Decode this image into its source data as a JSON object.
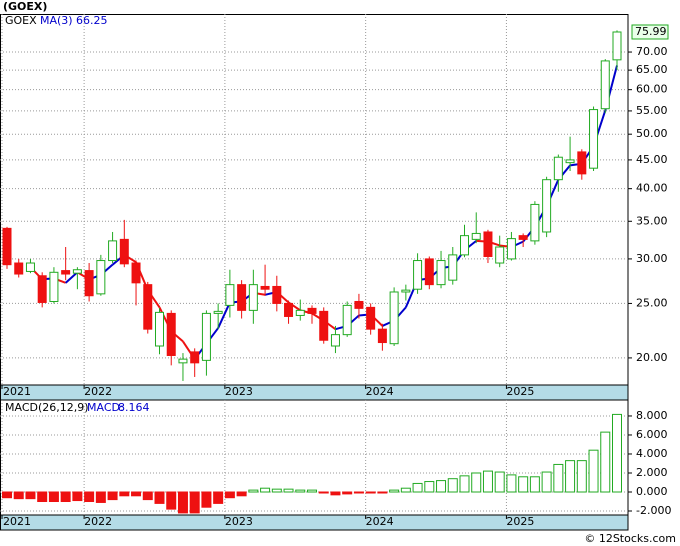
{
  "chart_data": [
    {
      "type": "candlestick",
      "title": "(GOEX)",
      "ticker_label": "GOEX",
      "categories": [
        "2021",
        null,
        null,
        null,
        null,
        null,
        null,
        "2022",
        null,
        null,
        null,
        null,
        null,
        null,
        null,
        null,
        null,
        null,
        null,
        "2023",
        null,
        null,
        null,
        null,
        null,
        null,
        null,
        null,
        null,
        null,
        null,
        "2024",
        null,
        null,
        null,
        null,
        null,
        null,
        null,
        null,
        null,
        null,
        null,
        "2025",
        null,
        null,
        null,
        null,
        null,
        null,
        null,
        null,
        null
      ],
      "open": [
        34,
        29.5,
        28.5,
        28,
        25.2,
        28.6,
        28.3,
        28.6,
        26,
        29.8,
        32.5,
        29.5,
        27,
        21,
        24,
        19.6,
        20.5,
        19.8,
        24,
        24.8,
        27,
        24.3,
        26.8,
        26.8,
        25,
        23.8,
        24.5,
        24.2,
        21,
        22,
        25.2,
        24.6,
        22.5,
        21.2,
        26.2,
        26.5,
        30,
        27,
        27.5,
        30.5,
        32.5,
        33.5,
        29.5,
        30,
        33,
        32.3,
        33.5,
        41.5,
        44.5,
        46.5,
        43.5,
        55.5,
        67.8
      ],
      "high": [
        34.2,
        30,
        30,
        28.4,
        29,
        31.5,
        29,
        29.5,
        30.5,
        33.5,
        35.2,
        29.8,
        27.3,
        24.5,
        24.3,
        20.4,
        20.8,
        24.3,
        25,
        28.7,
        27.5,
        28.7,
        29.3,
        28,
        25.3,
        25.4,
        24.8,
        24.6,
        22.8,
        25.2,
        26,
        25,
        23,
        26.7,
        27,
        30.7,
        30.3,
        31,
        31.5,
        34.5,
        36.3,
        33.8,
        33,
        33.5,
        33.3,
        38,
        42,
        46,
        49.5,
        47,
        56,
        68,
        76.5
      ],
      "low": [
        28.8,
        27.8,
        28.3,
        24.6,
        25,
        27.5,
        26.5,
        25.2,
        25.8,
        29.5,
        29,
        24.8,
        22.1,
        20.3,
        19.4,
        18.2,
        18.5,
        18.6,
        22.5,
        23.6,
        23.5,
        23,
        25.8,
        24.2,
        23,
        23.3,
        23,
        21.2,
        20.4,
        21.8,
        23.5,
        22,
        20.6,
        21,
        25.3,
        26,
        26.5,
        26.6,
        27,
        30.2,
        32,
        29.5,
        29,
        29.8,
        31.5,
        31.8,
        32.8,
        39.5,
        43,
        41.5,
        43,
        54.5,
        65
      ],
      "close": [
        29.3,
        28.2,
        29.5,
        25.1,
        28.4,
        28.2,
        28.7,
        25.8,
        29.8,
        32.3,
        29.4,
        27.2,
        22.5,
        24.1,
        20.2,
        19.9,
        19.6,
        24,
        24.2,
        27,
        24.3,
        27,
        26.5,
        25,
        23.7,
        24.3,
        24,
        21.5,
        22,
        24.8,
        24.5,
        22.5,
        21.3,
        26.2,
        26.4,
        29.8,
        27,
        29.8,
        30.5,
        33,
        33.3,
        30.3,
        31.5,
        32.6,
        32.5,
        37.5,
        41.5,
        45.5,
        45,
        42.5,
        55.3,
        67.5,
        75.99
      ],
      "up_color": "#22aa22",
      "down_color": "#ee1111",
      "series": [
        {
          "name": "MA(3)",
          "color": "#0000cc",
          "down_color": "#ee1111",
          "values": [
            null,
            null,
            29.0,
            27.6,
            27.7,
            27.2,
            28.4,
            27.6,
            28.1,
            29.3,
            30.5,
            29.6,
            26.4,
            24.6,
            22.3,
            21.4,
            19.9,
            21.2,
            22.6,
            25.1,
            25.2,
            26.1,
            25.9,
            26.2,
            25.1,
            24.3,
            24.0,
            23.3,
            22.5,
            22.8,
            23.8,
            23.9,
            22.8,
            23.3,
            24.6,
            27.5,
            27.7,
            28.9,
            29.1,
            31.1,
            32.3,
            32.2,
            31.7,
            31.5,
            32.2,
            34.2,
            37.2,
            41.5,
            44.0,
            44.3,
            47.6,
            55.1,
            66.25
          ]
        }
      ],
      "ylim": [
        17.9,
        81.8
      ],
      "log_scale": true,
      "grid": true,
      "yticks": [
        {
          "value": 20,
          "label": "20.00"
        },
        {
          "value": 25,
          "label": "25.00"
        },
        {
          "value": 30,
          "label": "30.00"
        },
        {
          "value": 35,
          "label": "35.00"
        },
        {
          "value": 40,
          "label": "40.00"
        },
        {
          "value": 45,
          "label": "45.00"
        },
        {
          "value": 50,
          "label": "50.00"
        },
        {
          "value": 55,
          "label": "55.00"
        },
        {
          "value": 60,
          "label": "60.00"
        },
        {
          "value": 65,
          "label": "65.00"
        },
        {
          "value": 70,
          "label": "70.00"
        }
      ]
    },
    {
      "type": "bar",
      "name": "MACD(26,12,9)",
      "value_prefix": "MACD:",
      "categories": [
        "2021",
        null,
        null,
        null,
        null,
        null,
        null,
        "2022",
        null,
        null,
        null,
        null,
        null,
        null,
        null,
        null,
        null,
        null,
        null,
        "2023",
        null,
        null,
        null,
        null,
        null,
        null,
        null,
        null,
        null,
        null,
        null,
        "2024",
        null,
        null,
        null,
        null,
        null,
        null,
        null,
        null,
        null,
        null,
        null,
        "2025",
        null,
        null,
        null,
        null,
        null,
        null,
        null,
        null,
        null
      ],
      "values": [
        -0.6,
        -0.7,
        -0.7,
        -1.0,
        -1.0,
        -1.0,
        -0.9,
        -1.0,
        -1.1,
        -0.8,
        -0.4,
        -0.4,
        -0.8,
        -1.2,
        -1.8,
        -2.2,
        -2.2,
        -1.6,
        -1.2,
        -0.6,
        -0.4,
        0.2,
        0.4,
        0.3,
        0.3,
        0.2,
        0.2,
        -0.1,
        -0.3,
        -0.2,
        -0.1,
        -0.1,
        -0.1,
        0.2,
        0.4,
        0.9,
        1.1,
        1.2,
        1.4,
        1.7,
        2.0,
        2.2,
        2.1,
        1.8,
        1.6,
        1.6,
        2.1,
        2.9,
        3.3,
        3.3,
        4.4,
        6.3,
        8.164
      ],
      "up_color": "#22aa22",
      "down_color": "#ee1111",
      "ylim": [
        -2.42,
        9.68
      ],
      "grid": true,
      "yticks": [
        {
          "value": -2,
          "label": "-2.000"
        },
        {
          "value": 0,
          "label": "0.000"
        },
        {
          "value": 2,
          "label": "2.000"
        },
        {
          "value": 4,
          "label": "4.000"
        },
        {
          "value": 6,
          "label": "6.000"
        },
        {
          "value": 8,
          "label": "8.000"
        }
      ]
    }
  ],
  "footer": "© 12Stocks.com"
}
